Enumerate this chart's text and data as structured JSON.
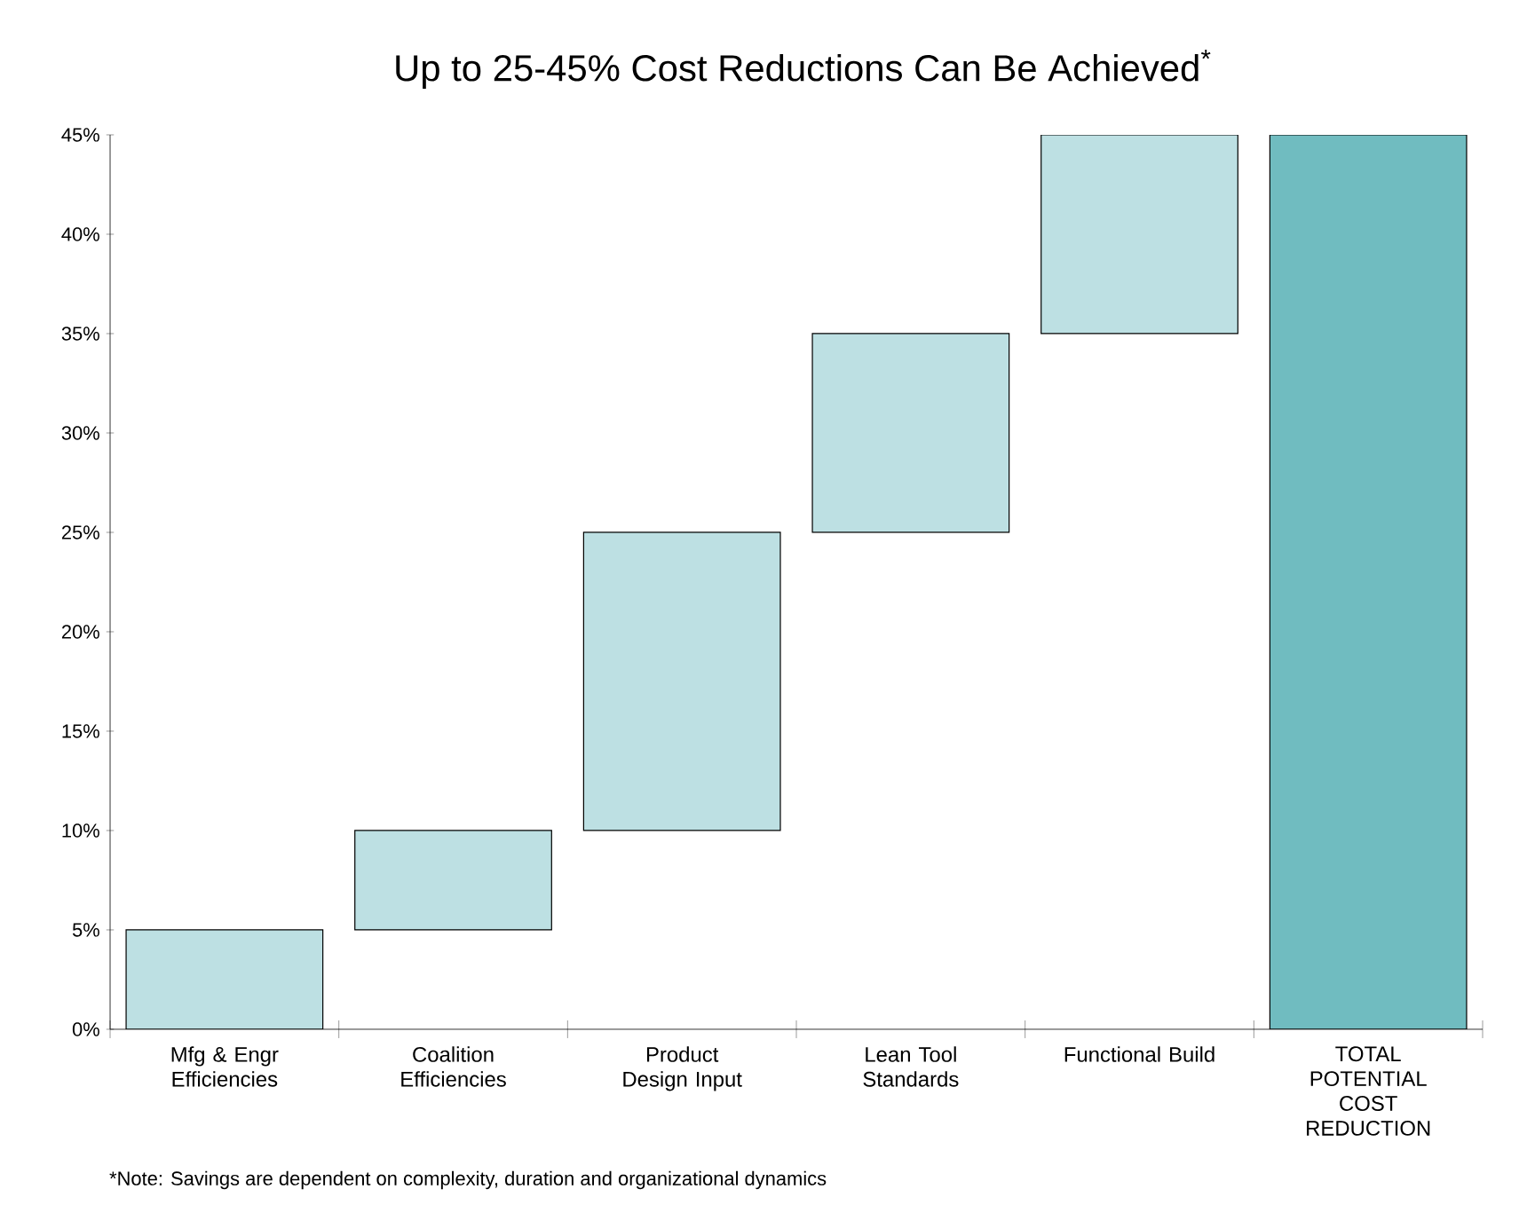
{
  "chart_data": {
    "type": "bar",
    "title": "Up to 25-45% Cost Reductions Can Be Achieved$^{*}$",
    "categories": [
      "Mfg & Engr Efficiencies",
      "Coalition Efficiencies",
      "Product Design Input",
      "Lean Tool Standards",
      "Functional Build",
      "TOTAL POTENTIAL COST REDUCTION"
    ],
    "values": [
      5,
      5,
      15,
      10,
      10,
      45
    ],
    "base": [
      0,
      5,
      10,
      25,
      35,
      0
    ],
    "colors": [
      "#bde0e3",
      "#bde0e3",
      "#bde0e3",
      "#bde0e3",
      "#bde0e3",
      "#70bcc0"
    ],
    "ylim": [
      0,
      45
    ],
    "yticks": [
      {
        "value": 0,
        "label": "0%"
      },
      {
        "value": 5,
        "label": "5%"
      },
      {
        "value": 10,
        "label": "10%"
      },
      {
        "value": 15,
        "label": "15%"
      },
      {
        "value": 20,
        "label": "20%"
      },
      {
        "value": 25,
        "label": "25%"
      },
      {
        "value": 30,
        "label": "30%"
      },
      {
        "value": 35,
        "label": "35%"
      },
      {
        "value": 40,
        "label": "40%"
      },
      {
        "value": 45,
        "label": "45%"
      }
    ],
    "grid": false,
    "annotations": [
      "*Note: Savings are dependent on complexity, duration and organizational dynamics"
    ]
  }
}
